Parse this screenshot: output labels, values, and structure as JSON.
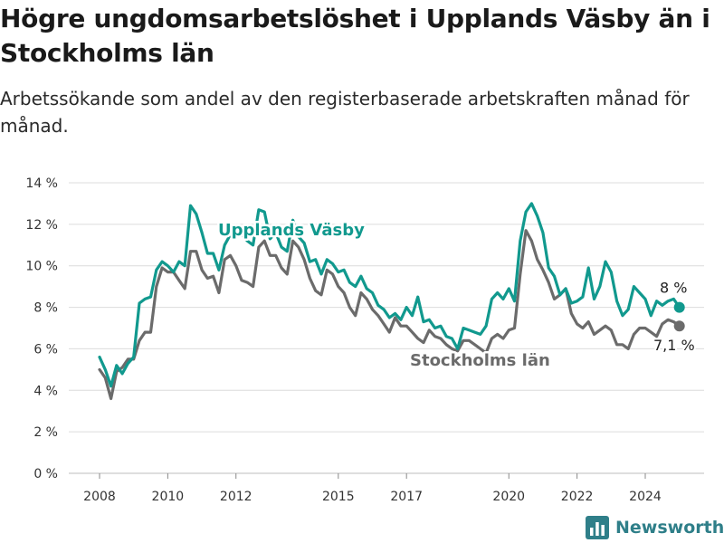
{
  "title": "Högre ungdomsarbetslöshet i Upplands Väsby än i Stockholms län",
  "subtitle": "Arbetssökande som andel av den registerbaserade arbetskraften månad för månad.",
  "brand": {
    "name": "Newsworthy",
    "icon": "bar-chart-logo-icon",
    "color": "#2f7f89"
  },
  "chart_data": {
    "type": "line",
    "ylim": [
      0,
      14
    ],
    "y_ticks": [
      0,
      2,
      4,
      6,
      8,
      10,
      12,
      14
    ],
    "y_tick_labels": [
      "0 %",
      "2 %",
      "4 %",
      "6 %",
      "8 %",
      "10 %",
      "12 %",
      "14 %"
    ],
    "x_ticks": [
      2008,
      2010,
      2012,
      2015,
      2017,
      2020,
      2022,
      2024
    ],
    "x_tick_labels": [
      "2008",
      "2010",
      "2012",
      "2015",
      "2017",
      "2020",
      "2022",
      "2024"
    ],
    "grid": true,
    "series": [
      {
        "name": "Upplands Väsby",
        "color": "#11998e",
        "end_label": "8 %",
        "points": [
          [
            "2008-01",
            5.6
          ],
          [
            "2008-03",
            5.0
          ],
          [
            "2008-05",
            4.2
          ],
          [
            "2008-07",
            5.2
          ],
          [
            "2008-09",
            4.8
          ],
          [
            "2008-11",
            5.3
          ],
          [
            "2009-01",
            5.6
          ],
          [
            "2009-03",
            8.2
          ],
          [
            "2009-05",
            8.4
          ],
          [
            "2009-07",
            8.5
          ],
          [
            "2009-09",
            9.8
          ],
          [
            "2009-11",
            10.2
          ],
          [
            "2010-01",
            10.0
          ],
          [
            "2010-03",
            9.7
          ],
          [
            "2010-05",
            10.2
          ],
          [
            "2010-07",
            10.0
          ],
          [
            "2010-09",
            12.9
          ],
          [
            "2010-11",
            12.5
          ],
          [
            "2011-01",
            11.6
          ],
          [
            "2011-03",
            10.6
          ],
          [
            "2011-05",
            10.6
          ],
          [
            "2011-07",
            9.8
          ],
          [
            "2011-09",
            11.0
          ],
          [
            "2011-11",
            11.5
          ],
          [
            "2012-01",
            11.4
          ],
          [
            "2012-03",
            11.5
          ],
          [
            "2012-05",
            11.2
          ],
          [
            "2012-07",
            11.0
          ],
          [
            "2012-09",
            12.7
          ],
          [
            "2012-11",
            12.6
          ],
          [
            "2013-01",
            11.3
          ],
          [
            "2013-03",
            11.6
          ],
          [
            "2013-05",
            10.9
          ],
          [
            "2013-07",
            10.7
          ],
          [
            "2013-09",
            12.2
          ],
          [
            "2013-11",
            11.4
          ],
          [
            "2014-01",
            11.1
          ],
          [
            "2014-03",
            10.2
          ],
          [
            "2014-05",
            10.3
          ],
          [
            "2014-07",
            9.6
          ],
          [
            "2014-09",
            10.3
          ],
          [
            "2014-11",
            10.1
          ],
          [
            "2015-01",
            9.7
          ],
          [
            "2015-03",
            9.8
          ],
          [
            "2015-05",
            9.2
          ],
          [
            "2015-07",
            9.0
          ],
          [
            "2015-09",
            9.5
          ],
          [
            "2015-11",
            8.9
          ],
          [
            "2016-01",
            8.7
          ],
          [
            "2016-03",
            8.1
          ],
          [
            "2016-05",
            7.9
          ],
          [
            "2016-07",
            7.5
          ],
          [
            "2016-09",
            7.7
          ],
          [
            "2016-11",
            7.4
          ],
          [
            "2017-01",
            8.0
          ],
          [
            "2017-03",
            7.6
          ],
          [
            "2017-05",
            8.5
          ],
          [
            "2017-07",
            7.3
          ],
          [
            "2017-09",
            7.4
          ],
          [
            "2017-11",
            7.0
          ],
          [
            "2018-01",
            7.1
          ],
          [
            "2018-03",
            6.6
          ],
          [
            "2018-05",
            6.5
          ],
          [
            "2018-07",
            6.0
          ],
          [
            "2018-09",
            7.0
          ],
          [
            "2018-11",
            6.9
          ],
          [
            "2019-01",
            6.8
          ],
          [
            "2019-03",
            6.7
          ],
          [
            "2019-05",
            7.1
          ],
          [
            "2019-07",
            8.4
          ],
          [
            "2019-09",
            8.7
          ],
          [
            "2019-11",
            8.4
          ],
          [
            "2020-01",
            8.9
          ],
          [
            "2020-03",
            8.3
          ],
          [
            "2020-05",
            11.2
          ],
          [
            "2020-07",
            12.6
          ],
          [
            "2020-09",
            13.0
          ],
          [
            "2020-11",
            12.4
          ],
          [
            "2021-01",
            11.6
          ],
          [
            "2021-03",
            9.9
          ],
          [
            "2021-05",
            9.5
          ],
          [
            "2021-07",
            8.6
          ],
          [
            "2021-09",
            8.9
          ],
          [
            "2021-11",
            8.2
          ],
          [
            "2022-01",
            8.3
          ],
          [
            "2022-03",
            8.5
          ],
          [
            "2022-05",
            9.9
          ],
          [
            "2022-07",
            8.4
          ],
          [
            "2022-09",
            9.0
          ],
          [
            "2022-11",
            10.2
          ],
          [
            "2023-01",
            9.7
          ],
          [
            "2023-03",
            8.3
          ],
          [
            "2023-05",
            7.6
          ],
          [
            "2023-07",
            7.9
          ],
          [
            "2023-09",
            9.0
          ],
          [
            "2023-11",
            8.7
          ],
          [
            "2024-01",
            8.4
          ],
          [
            "2024-03",
            7.6
          ],
          [
            "2024-05",
            8.3
          ],
          [
            "2024-07",
            8.1
          ],
          [
            "2024-09",
            8.3
          ],
          [
            "2024-11",
            8.4
          ],
          [
            "2025-01",
            8.0
          ]
        ]
      },
      {
        "name": "Stockholms län",
        "color": "#6b6b6b",
        "end_label": "7,1 %",
        "points": [
          [
            "2008-01",
            5.0
          ],
          [
            "2008-03",
            4.6
          ],
          [
            "2008-05",
            3.6
          ],
          [
            "2008-07",
            4.9
          ],
          [
            "2008-09",
            5.1
          ],
          [
            "2008-11",
            5.5
          ],
          [
            "2009-01",
            5.5
          ],
          [
            "2009-03",
            6.4
          ],
          [
            "2009-05",
            6.8
          ],
          [
            "2009-07",
            6.8
          ],
          [
            "2009-09",
            9.0
          ],
          [
            "2009-11",
            9.9
          ],
          [
            "2010-01",
            9.7
          ],
          [
            "2010-03",
            9.7
          ],
          [
            "2010-05",
            9.3
          ],
          [
            "2010-07",
            8.9
          ],
          [
            "2010-09",
            10.7
          ],
          [
            "2010-11",
            10.7
          ],
          [
            "2011-01",
            9.8
          ],
          [
            "2011-03",
            9.4
          ],
          [
            "2011-05",
            9.5
          ],
          [
            "2011-07",
            8.7
          ],
          [
            "2011-09",
            10.3
          ],
          [
            "2011-11",
            10.5
          ],
          [
            "2012-01",
            10.0
          ],
          [
            "2012-03",
            9.3
          ],
          [
            "2012-05",
            9.2
          ],
          [
            "2012-07",
            9.0
          ],
          [
            "2012-09",
            10.9
          ],
          [
            "2012-11",
            11.2
          ],
          [
            "2013-01",
            10.5
          ],
          [
            "2013-03",
            10.5
          ],
          [
            "2013-05",
            9.9
          ],
          [
            "2013-07",
            9.6
          ],
          [
            "2013-09",
            11.2
          ],
          [
            "2013-11",
            10.9
          ],
          [
            "2014-01",
            10.3
          ],
          [
            "2014-03",
            9.4
          ],
          [
            "2014-05",
            8.8
          ],
          [
            "2014-07",
            8.6
          ],
          [
            "2014-09",
            9.8
          ],
          [
            "2014-11",
            9.6
          ],
          [
            "2015-01",
            9.0
          ],
          [
            "2015-03",
            8.7
          ],
          [
            "2015-05",
            8.0
          ],
          [
            "2015-07",
            7.6
          ],
          [
            "2015-09",
            8.7
          ],
          [
            "2015-11",
            8.4
          ],
          [
            "2016-01",
            7.9
          ],
          [
            "2016-03",
            7.6
          ],
          [
            "2016-05",
            7.2
          ],
          [
            "2016-07",
            6.8
          ],
          [
            "2016-09",
            7.5
          ],
          [
            "2016-11",
            7.1
          ],
          [
            "2017-01",
            7.1
          ],
          [
            "2017-03",
            6.8
          ],
          [
            "2017-05",
            6.5
          ],
          [
            "2017-07",
            6.3
          ],
          [
            "2017-09",
            6.9
          ],
          [
            "2017-11",
            6.6
          ],
          [
            "2018-01",
            6.5
          ],
          [
            "2018-03",
            6.2
          ],
          [
            "2018-05",
            6.0
          ],
          [
            "2018-07",
            5.9
          ],
          [
            "2018-09",
            6.4
          ],
          [
            "2018-11",
            6.4
          ],
          [
            "2019-01",
            6.2
          ],
          [
            "2019-03",
            6.0
          ],
          [
            "2019-05",
            5.8
          ],
          [
            "2019-07",
            6.5
          ],
          [
            "2019-09",
            6.7
          ],
          [
            "2019-11",
            6.5
          ],
          [
            "2020-01",
            6.9
          ],
          [
            "2020-03",
            7.0
          ],
          [
            "2020-05",
            9.6
          ],
          [
            "2020-07",
            11.7
          ],
          [
            "2020-09",
            11.2
          ],
          [
            "2020-11",
            10.3
          ],
          [
            "2021-01",
            9.8
          ],
          [
            "2021-03",
            9.2
          ],
          [
            "2021-05",
            8.4
          ],
          [
            "2021-07",
            8.6
          ],
          [
            "2021-09",
            8.9
          ],
          [
            "2021-11",
            7.7
          ],
          [
            "2022-01",
            7.2
          ],
          [
            "2022-03",
            7.0
          ],
          [
            "2022-05",
            7.3
          ],
          [
            "2022-07",
            6.7
          ],
          [
            "2022-09",
            6.9
          ],
          [
            "2022-11",
            7.1
          ],
          [
            "2023-01",
            6.9
          ],
          [
            "2023-03",
            6.2
          ],
          [
            "2023-05",
            6.2
          ],
          [
            "2023-07",
            6.0
          ],
          [
            "2023-09",
            6.7
          ],
          [
            "2023-11",
            7.0
          ],
          [
            "2024-01",
            7.0
          ],
          [
            "2024-03",
            6.8
          ],
          [
            "2024-05",
            6.6
          ],
          [
            "2024-07",
            7.2
          ],
          [
            "2024-09",
            7.4
          ],
          [
            "2024-11",
            7.3
          ],
          [
            "2025-01",
            7.1
          ]
        ]
      }
    ]
  }
}
